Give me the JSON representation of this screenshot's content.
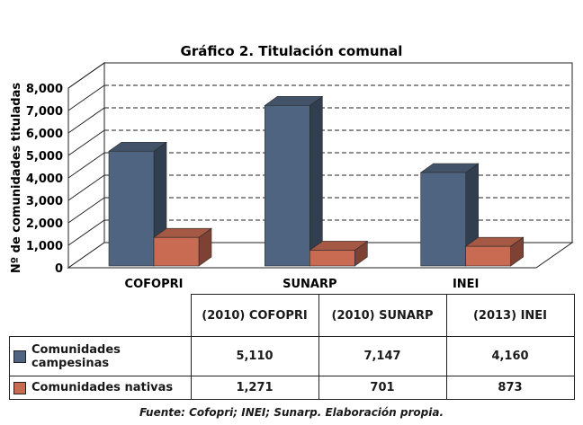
{
  "chart_data": {
    "type": "bar",
    "title": "Gráfico 2. Titulación comunal",
    "ylabel": "Nº de comunidades tituladas",
    "ylim": [
      0,
      8000
    ],
    "y_ticks": [
      "0",
      "1,000",
      "2,000",
      "3,000",
      "4,000",
      "5,000",
      "6,000",
      "7,000",
      "8,000"
    ],
    "grid": true,
    "categories": [
      "COFOPRI",
      "SUNARP",
      "INEI"
    ],
    "series": [
      {
        "name": "Comunidades campesinas",
        "values": [
          5110,
          7147,
          4160
        ],
        "color": "#4f6480"
      },
      {
        "name": "Comunidades nativas",
        "values": [
          1271,
          701,
          873
        ],
        "color": "#c96b52"
      }
    ]
  },
  "table": {
    "headers": [
      "(2010) COFOPRI",
      "(2010) SUNARP",
      "(2013) INEI"
    ],
    "rows": [
      {
        "label": "Comunidades campesinas",
        "values": [
          "5,110",
          "7,147",
          "4,160"
        ]
      },
      {
        "label": "Comunidades nativas",
        "values": [
          "1,271",
          "701",
          "873"
        ]
      }
    ]
  },
  "source": "Fuente: Cofopri; INEI; Sunarp. Elaboración propia."
}
